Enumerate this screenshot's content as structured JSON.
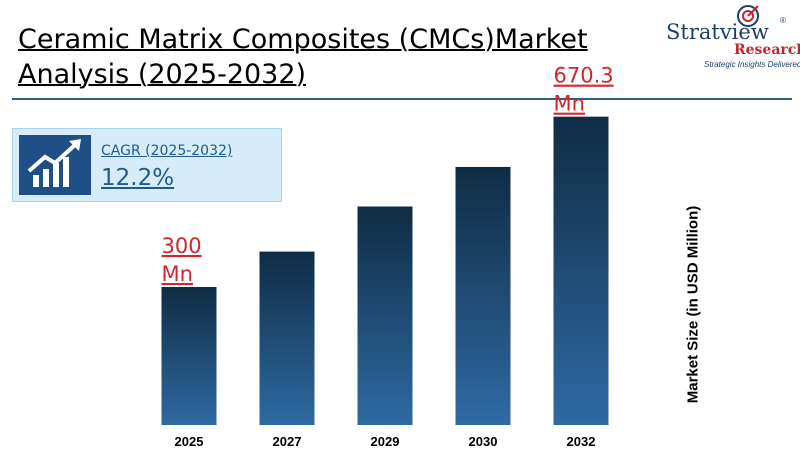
{
  "header": {
    "title_line1": "Ceramic Matrix Composites (CMCs)Market",
    "title_line2": "Analysis (2025-2032)"
  },
  "logo": {
    "name": "Stratview",
    "registered": "®",
    "research": "Research",
    "tagline": "Strategic Insights Delivered"
  },
  "cagr": {
    "label": "CAGR (2025-2032)",
    "value": "12.2%",
    "icon": "growth-chart-icon"
  },
  "colors": {
    "bar_top": "#0f2c44",
    "bar_bottom": "#2f6aa3",
    "annotation": "#d0262e",
    "title_rule": "#2f5d8a"
  },
  "chart_data": {
    "type": "bar",
    "categories": [
      "2025",
      "2027",
      "2029",
      "2030",
      "2032"
    ],
    "values": [
      300,
      377,
      475,
      561,
      670.3
    ],
    "ylabel": "Market Size (in USD Million)",
    "ylim": [
      0,
      750
    ],
    "grid": false,
    "legend": "none",
    "annotations": [
      {
        "category": "2025",
        "line1": "300",
        "line2": "Mn"
      },
      {
        "category": "2032",
        "line1": "670.3",
        "line2": "Mn"
      }
    ]
  }
}
